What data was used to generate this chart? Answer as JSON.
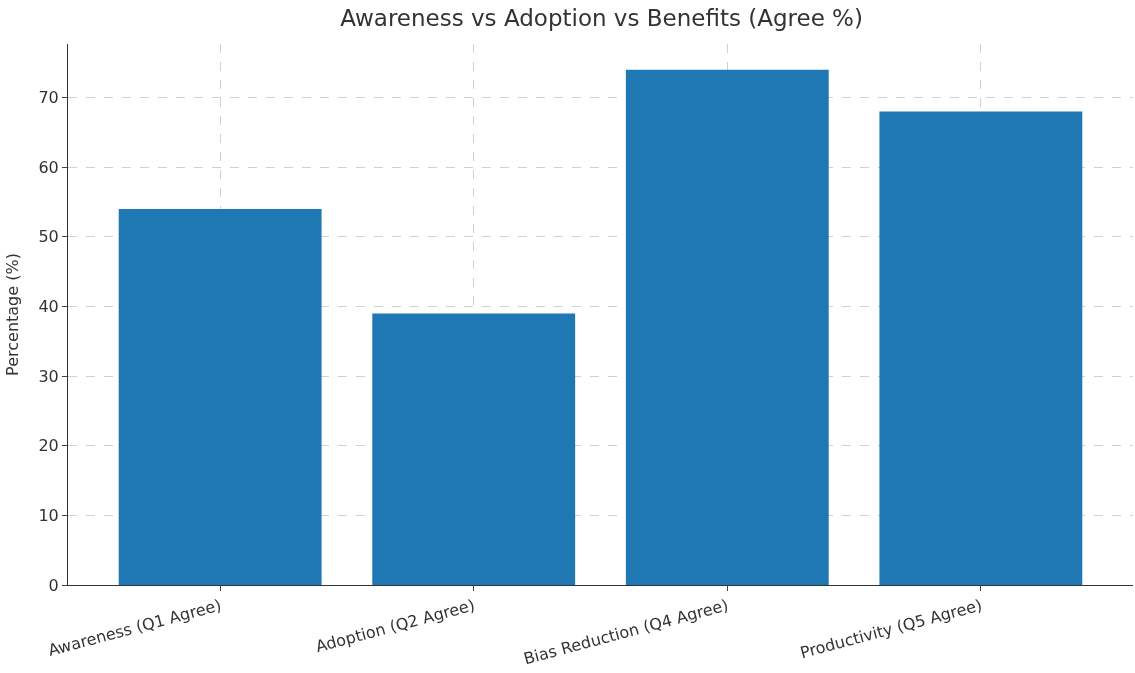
{
  "chart_data": {
    "type": "bar",
    "title": "Awareness vs Adoption vs Benefits (Agree %)",
    "ylabel": "Percentage (%)",
    "categories": [
      "Awareness (Q1 Agree)",
      "Adoption (Q2 Agree)",
      "Bias Reduction (Q4 Agree)",
      "Productivity (Q5 Agree)"
    ],
    "values": [
      54,
      39,
      74,
      68
    ],
    "color": "#1f77b4",
    "ylim": [
      0,
      77.7
    ],
    "yticks": [
      0,
      10,
      20,
      30,
      40,
      50,
      60,
      70
    ],
    "grid": true
  }
}
